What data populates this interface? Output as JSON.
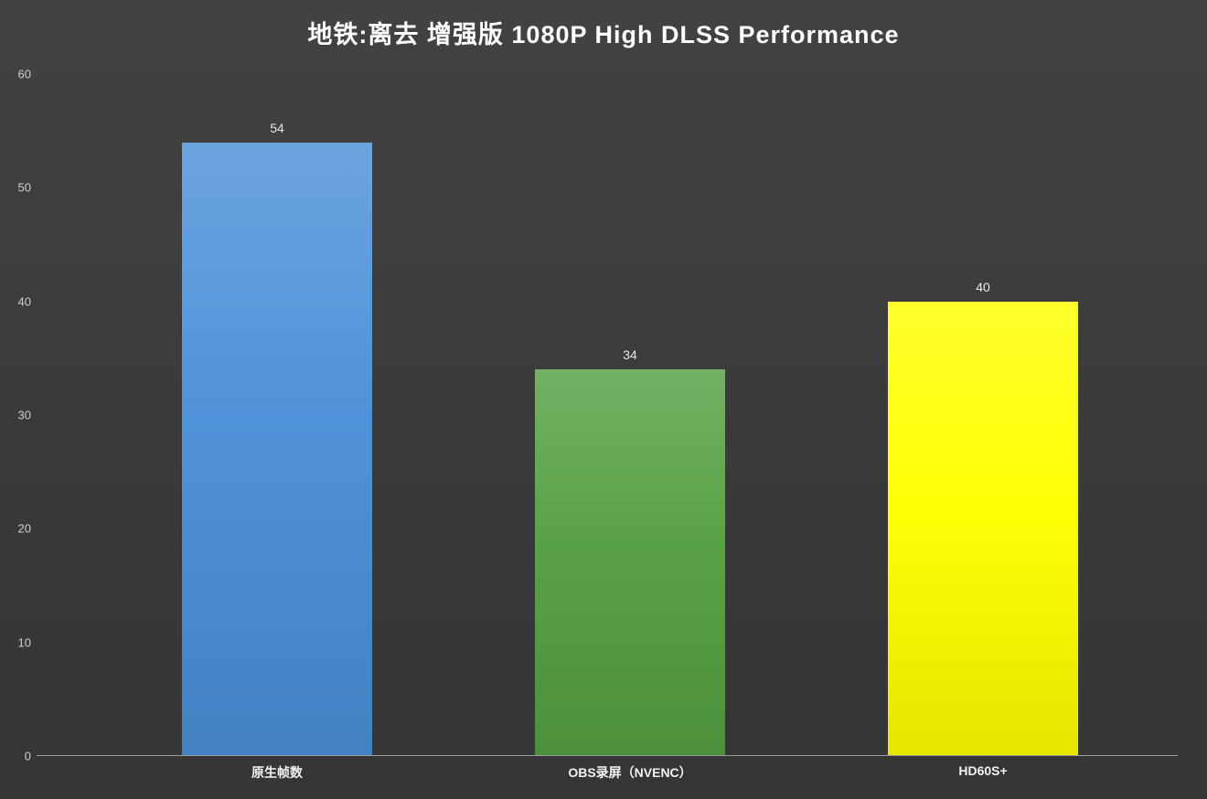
{
  "chart_data": {
    "type": "bar",
    "title": "地铁:离去 增强版 1080P High DLSS Performance",
    "categories": [
      "原生帧数",
      "OBS录屏（NVENC）",
      "HD60S+"
    ],
    "values": [
      54,
      34,
      40
    ],
    "data_labels": [
      "54",
      "34",
      "40"
    ],
    "bar_colors": [
      "#4b90d8",
      "#55a042",
      "#ffff00"
    ],
    "xlabel": "",
    "ylabel": "",
    "ylim": [
      0,
      60
    ],
    "y_tick_step": 10,
    "y_tick_labels": [
      "0",
      "10",
      "20",
      "30",
      "40",
      "50",
      "60"
    ],
    "grid": false,
    "legend_position": "none",
    "background_color": "#3a3a3a",
    "axis_line_color": "#9a9a9a",
    "text_color": "#ffffff"
  }
}
